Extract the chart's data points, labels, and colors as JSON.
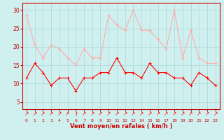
{
  "x": [
    0,
    1,
    2,
    3,
    4,
    5,
    6,
    7,
    8,
    9,
    10,
    11,
    12,
    13,
    14,
    15,
    16,
    17,
    18,
    19,
    20,
    21,
    22,
    23
  ],
  "wind_avg": [
    11.5,
    15.5,
    13,
    9.5,
    11.5,
    11.5,
    8,
    11.5,
    11.5,
    13,
    13,
    17,
    13,
    13,
    11.5,
    15.5,
    13,
    13,
    11.5,
    11.5,
    9.5,
    13,
    11.5,
    9.5
  ],
  "wind_gust": [
    28.5,
    20.5,
    17,
    20.5,
    19.5,
    17,
    15,
    19.5,
    17,
    17,
    28.5,
    26,
    24.5,
    30,
    24.5,
    24.5,
    22,
    19.5,
    30,
    17,
    24.5,
    17,
    15.5,
    15.5
  ],
  "avg_color": "#ff0000",
  "gust_color": "#ffaaaa",
  "bg_color": "#d0f0f0",
  "grid_color": "#a8d8d8",
  "xlabel": "Vent moyen/en rafales ( km/h )",
  "xlabel_color": "#cc0000",
  "tick_color": "#cc0000",
  "yticks": [
    5,
    10,
    15,
    20,
    25,
    30
  ],
  "ylim": [
    3,
    32
  ],
  "xlim": [
    -0.5,
    23.5
  ],
  "arrow_chars": [
    "↗",
    "↗",
    "↗",
    "↗",
    "↗",
    "↗",
    "↑",
    "↗",
    "↗",
    "↗",
    "↗",
    "↗",
    "↗",
    "↗",
    "↗",
    "↗",
    "↗",
    "↗",
    "↗",
    "↗",
    "↗",
    "↗",
    "↗",
    "↗"
  ]
}
